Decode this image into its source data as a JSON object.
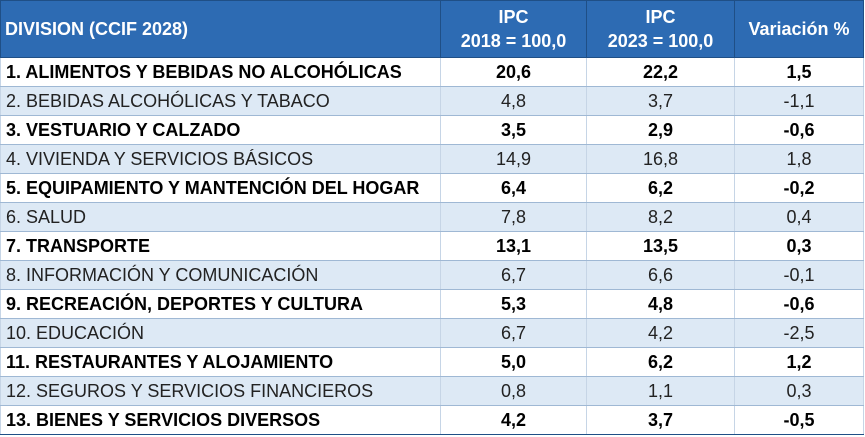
{
  "header": {
    "division": "DIVISION (CCIF 2028)",
    "ipc1_line1": "IPC",
    "ipc1_line2": "2018 = 100,0",
    "ipc2_line1": "IPC",
    "ipc2_line2": "2023 = 100,0",
    "variation": "Variación %"
  },
  "rows": [
    {
      "division": "1. ALIMENTOS Y BEBIDAS NO ALCOHÓLICAS",
      "ipc2018": "20,6",
      "ipc2023": "22,2",
      "variacion": "1,5"
    },
    {
      "division": "2. BEBIDAS ALCOHÓLICAS Y TABACO",
      "ipc2018": "4,8",
      "ipc2023": "3,7",
      "variacion": "-1,1"
    },
    {
      "division": "3. VESTUARIO Y CALZADO",
      "ipc2018": "3,5",
      "ipc2023": "2,9",
      "variacion": "-0,6"
    },
    {
      "division": "4. VIVIENDA Y SERVICIOS BÁSICOS",
      "ipc2018": "14,9",
      "ipc2023": "16,8",
      "variacion": "1,8"
    },
    {
      "division": "5. EQUIPAMIENTO Y MANTENCIÓN DEL HOGAR",
      "ipc2018": "6,4",
      "ipc2023": "6,2",
      "variacion": "-0,2"
    },
    {
      "division": "6. SALUD",
      "ipc2018": "7,8",
      "ipc2023": "8,2",
      "variacion": "0,4"
    },
    {
      "division": "7. TRANSPORTE",
      "ipc2018": "13,1",
      "ipc2023": "13,5",
      "variacion": "0,3"
    },
    {
      "division": "8. INFORMACIÓN Y COMUNICACIÓN",
      "ipc2018": "6,7",
      "ipc2023": "6,6",
      "variacion": "-0,1"
    },
    {
      "division": "9. RECREACIÓN, DEPORTES Y CULTURA",
      "ipc2018": "5,3",
      "ipc2023": "4,8",
      "variacion": "-0,6"
    },
    {
      "division": "10. EDUCACIÓN",
      "ipc2018": "6,7",
      "ipc2023": "4,2",
      "variacion": "-2,5"
    },
    {
      "division": "11. RESTAURANTES Y ALOJAMIENTO",
      "ipc2018": "5,0",
      "ipc2023": "6,2",
      "variacion": "1,2"
    },
    {
      "division": "12. SEGUROS Y SERVICIOS FINANCIEROS",
      "ipc2018": "0,8",
      "ipc2023": "1,1",
      "variacion": "0,3"
    },
    {
      "division": "13. BIENES Y SERVICIOS DIVERSOS",
      "ipc2018": "4,2",
      "ipc2023": "3,7",
      "variacion": "-0,5"
    }
  ]
}
